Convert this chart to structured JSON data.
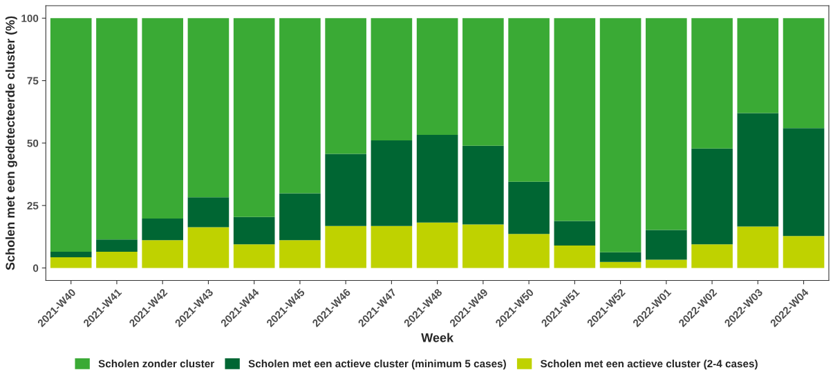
{
  "chart_data": {
    "type": "bar",
    "stacked": true,
    "xlabel": "Week",
    "ylabel": "Scholen met een gedetecteerde cluster (%)",
    "categories": [
      "2021-W40",
      "2021-W41",
      "2021-W42",
      "2021-W43",
      "2021-W44",
      "2021-W45",
      "2021-W46",
      "2021-W47",
      "2021-W48",
      "2021-W49",
      "2021-W50",
      "2021-W51",
      "2021-W52",
      "2022-W01",
      "2022-W02",
      "2022-W03",
      "2022-W04"
    ],
    "series": [
      {
        "name": "Scholen met een actieve cluster (2-4 cases)",
        "color": "#bfd200",
        "values": [
          4.3,
          6.5,
          11.1,
          16.3,
          9.5,
          11.1,
          16.8,
          16.8,
          18.2,
          17.4,
          13.6,
          9.0,
          2.4,
          3.3,
          9.5,
          16.6,
          12.8
        ]
      },
      {
        "name": "Scholen met een actieve cluster (minimum 5 cases)",
        "color": "#006633",
        "values": [
          2.2,
          4.9,
          8.7,
          12.0,
          10.9,
          18.8,
          28.9,
          34.3,
          35.1,
          31.5,
          20.9,
          9.8,
          3.9,
          11.9,
          38.3,
          45.4,
          43.2
        ]
      },
      {
        "name": "Scholen zonder cluster",
        "color": "#3aaa35",
        "values": [
          93.5,
          88.6,
          80.2,
          71.7,
          79.6,
          70.1,
          54.3,
          48.9,
          46.7,
          51.1,
          65.5,
          81.2,
          93.7,
          84.8,
          52.2,
          38.0,
          44.0
        ]
      }
    ],
    "ylim": [
      -5,
      105
    ],
    "yticks": [
      0,
      25,
      50,
      75,
      100
    ],
    "grid": false,
    "legend": "bottom"
  }
}
